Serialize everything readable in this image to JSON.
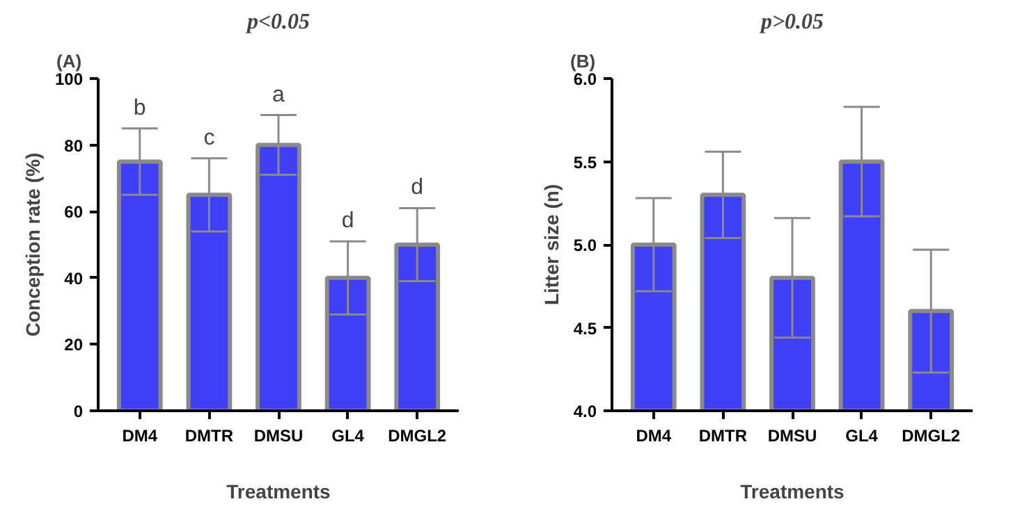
{
  "chart_data": [
    {
      "type": "bar",
      "title": "p<0.05",
      "subtitle": "(A)",
      "xlabel": "Treatments",
      "ylabel": "Conception rate (%)",
      "categories": [
        "DM4",
        "DMTR",
        "DMSU",
        "GL4",
        "DMGL2"
      ],
      "values": [
        75,
        65,
        80,
        40,
        50
      ],
      "errors": [
        10,
        11,
        9,
        11,
        11
      ],
      "color": "#3f3ff5",
      "ylim": [
        0,
        100
      ],
      "yticks": [
        0,
        20,
        40,
        60,
        80,
        100
      ],
      "grid": false,
      "annotations": [
        {
          "text": "b",
          "x": "DM4",
          "y": 85
        },
        {
          "text": "c",
          "x": "DMTR",
          "y": 76
        },
        {
          "text": "a",
          "x": "DMSU",
          "y": 89
        },
        {
          "text": "d",
          "x": "GL4",
          "y": 51
        },
        {
          "text": "d",
          "x": "DMGL2",
          "y": 61
        }
      ]
    },
    {
      "type": "bar",
      "title": "p>0.05",
      "subtitle": "(B)",
      "xlabel": "Treatments",
      "ylabel": "Litter size (n)",
      "categories": [
        "DM4",
        "DMTR",
        "DMSU",
        "GL4",
        "DMGL2"
      ],
      "values": [
        5.0,
        5.3,
        4.8,
        5.5,
        4.6
      ],
      "errors": [
        0.28,
        0.26,
        0.36,
        0.33,
        0.37
      ],
      "color": "#3f3ff5",
      "ylim": [
        4.0,
        6.0
      ],
      "yticks": [
        {
          "value": 4.0,
          "label": "4.0"
        },
        {
          "value": 4.5,
          "label": "4.5"
        },
        {
          "value": 5.0,
          "label": "5.0"
        },
        {
          "value": 5.5,
          "label": "5.5"
        },
        {
          "value": 6.0,
          "label": "6.0"
        }
      ],
      "grid": false
    }
  ]
}
